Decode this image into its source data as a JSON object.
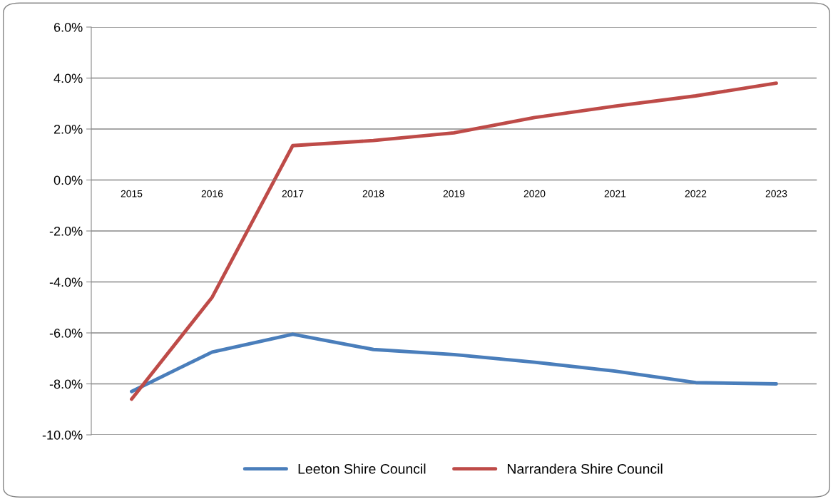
{
  "chart_data": {
    "type": "line",
    "categories": [
      "2015",
      "2016",
      "2017",
      "2018",
      "2019",
      "2020",
      "2021",
      "2022",
      "2023"
    ],
    "series": [
      {
        "name": "Leeton Shire Council",
        "color": "#4a7ebb",
        "values": [
          -8.3,
          -6.75,
          -6.05,
          -6.65,
          -6.85,
          -7.15,
          -7.5,
          -7.95,
          -8.0
        ]
      },
      {
        "name": "Narrandera Shire Council",
        "color": "#be4b48",
        "values": [
          -8.6,
          -4.6,
          1.35,
          1.55,
          1.85,
          2.45,
          2.9,
          3.3,
          3.8
        ]
      }
    ],
    "ylim": [
      -10,
      6
    ],
    "yticks": [
      {
        "value": -10,
        "label": "-10.0%"
      },
      {
        "value": -8,
        "label": "-8.0%"
      },
      {
        "value": -6,
        "label": "-6.0%"
      },
      {
        "value": -4,
        "label": "-4.0%"
      },
      {
        "value": -2,
        "label": "-2.0%"
      },
      {
        "value": 0,
        "label": "0.0%"
      },
      {
        "value": 2,
        "label": "2.0%"
      },
      {
        "value": 4,
        "label": "4.0%"
      },
      {
        "value": 6,
        "label": "6.0%"
      }
    ],
    "grid": "y",
    "legend": "bottom",
    "marker": "none",
    "line_style": "solid"
  }
}
